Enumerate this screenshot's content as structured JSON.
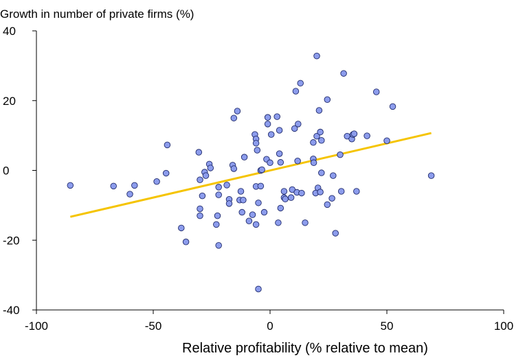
{
  "chart_data": {
    "type": "scatter",
    "title": "",
    "ylabel": "Growth in number of private firms (%)",
    "xlabel": "Relative profitability (% relative to mean)",
    "xlim": [
      -100,
      100
    ],
    "ylim": [
      -40,
      40
    ],
    "x_ticks": [
      "-100",
      "-50",
      "0",
      "50",
      "100"
    ],
    "y_ticks": [
      "40",
      "20",
      "0",
      "-20",
      "-40"
    ],
    "grid": false,
    "colors": {
      "points": "#8c9cec",
      "point_stroke": "#1f2a6b",
      "trend": "#f5c400",
      "axis": "#000000"
    },
    "points": [
      [
        -85.5,
        -4.3
      ],
      [
        -67,
        -4.5
      ],
      [
        -60,
        -6.8
      ],
      [
        -58,
        -4.3
      ],
      [
        -48.5,
        -3.2
      ],
      [
        -44.5,
        -0.8
      ],
      [
        -44,
        7.3
      ],
      [
        -38,
        -16.5
      ],
      [
        -36,
        -20.5
      ],
      [
        -30.5,
        5.2
      ],
      [
        -30,
        -2.7
      ],
      [
        -30,
        -11.0
      ],
      [
        -30,
        -13.0
      ],
      [
        -29,
        -7.3
      ],
      [
        -28,
        -0.5
      ],
      [
        -27.5,
        -1.5
      ],
      [
        -26,
        1.8
      ],
      [
        -25.5,
        0.7
      ],
      [
        -23,
        -15.5
      ],
      [
        -22.5,
        -13.0
      ],
      [
        -22,
        -4.8
      ],
      [
        -22,
        -7.0
      ],
      [
        -22,
        -21.5
      ],
      [
        -18.5,
        -4.2
      ],
      [
        -17.5,
        -8.3
      ],
      [
        -17.5,
        -9.5
      ],
      [
        -16,
        1.5
      ],
      [
        -15.5,
        0.5
      ],
      [
        -15.5,
        15.0
      ],
      [
        -14,
        17.0
      ],
      [
        -13,
        -8.5
      ],
      [
        -12.5,
        -6.0
      ],
      [
        -12,
        -12.0
      ],
      [
        -11.5,
        -8.5
      ],
      [
        -11,
        3.8
      ],
      [
        -9,
        -14.5
      ],
      [
        -7.5,
        -12.7
      ],
      [
        -6.5,
        10.3
      ],
      [
        -6,
        -4.6
      ],
      [
        -6,
        -15.5
      ],
      [
        -6,
        9.0
      ],
      [
        -6,
        7.8
      ],
      [
        -5.5,
        5.8
      ],
      [
        -5,
        -34.0
      ],
      [
        -5,
        -9.3
      ],
      [
        -4,
        0.0
      ],
      [
        -4,
        -4.5
      ],
      [
        -3.5,
        0.2
      ],
      [
        -2.5,
        -12.0
      ],
      [
        -1.5,
        3.2
      ],
      [
        -1,
        15.2
      ],
      [
        -1,
        13.3
      ],
      [
        0,
        2.2
      ],
      [
        0.5,
        10.3
      ],
      [
        3,
        15.4
      ],
      [
        3.5,
        -15.0
      ],
      [
        4,
        4.8
      ],
      [
        4,
        11.5
      ],
      [
        4.5,
        2.3
      ],
      [
        4.5,
        -10.8
      ],
      [
        6,
        -6.0
      ],
      [
        6,
        -7.8
      ],
      [
        6.5,
        -8.2
      ],
      [
        9,
        -7.8
      ],
      [
        9.5,
        -5.5
      ],
      [
        10.5,
        12.0
      ],
      [
        11,
        22.7
      ],
      [
        11.5,
        -6.3
      ],
      [
        11.8,
        2.7
      ],
      [
        12,
        13.3
      ],
      [
        13,
        25.0
      ],
      [
        13.5,
        -6.5
      ],
      [
        15,
        -15.0
      ],
      [
        18.5,
        8.0
      ],
      [
        18.5,
        3.3
      ],
      [
        18.7,
        2.2
      ],
      [
        19.5,
        -6.5
      ],
      [
        20,
        32.8
      ],
      [
        20,
        9.8
      ],
      [
        20.5,
        -5.0
      ],
      [
        21,
        17.2
      ],
      [
        21.5,
        11.0
      ],
      [
        21.5,
        -6.2
      ],
      [
        22,
        8.6
      ],
      [
        22,
        -0.7
      ],
      [
        24.5,
        20.3
      ],
      [
        24.5,
        -9.8
      ],
      [
        26.5,
        -8.0
      ],
      [
        27,
        -1.5
      ],
      [
        28,
        -18.0
      ],
      [
        30,
        4.5
      ],
      [
        30.5,
        -6.0
      ],
      [
        31.5,
        27.8
      ],
      [
        33,
        9.8
      ],
      [
        35,
        9.0
      ],
      [
        35.5,
        10.3
      ],
      [
        36,
        10.5
      ],
      [
        37,
        -6.0
      ],
      [
        41.5,
        9.9
      ],
      [
        45.5,
        22.5
      ],
      [
        50,
        8.5
      ],
      [
        52.5,
        18.3
      ],
      [
        69,
        -1.5
      ]
    ],
    "trendline": {
      "x": [
        -85.5,
        69
      ],
      "y": [
        -13.3,
        10.7
      ]
    }
  }
}
